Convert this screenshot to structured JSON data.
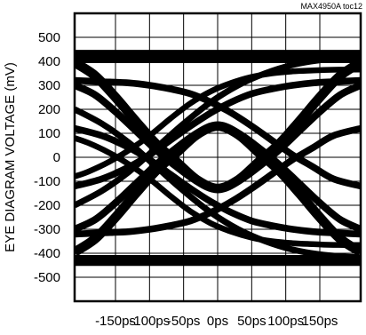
{
  "corner_label": "MAX4950A toc12",
  "chart_data": {
    "type": "line",
    "title": "",
    "xlabel": "",
    "ylabel": "EYE DIAGRAM VOLTAGE (mV)",
    "x_unit": "ps",
    "xlim": [
      -210,
      210
    ],
    "ylim": [
      -600,
      600
    ],
    "x_ticks": [
      -150,
      -100,
      -50,
      0,
      50,
      100,
      150
    ],
    "x_tick_labels": [
      "-150ps",
      "-100ps",
      "-50ps",
      "0ps",
      "50ps",
      "100ps",
      "150ps"
    ],
    "y_ticks": [
      500,
      400,
      300,
      200,
      100,
      0,
      -100,
      -200,
      -300,
      -400,
      -500
    ],
    "y_tick_labels": [
      "500",
      "400",
      "300",
      "200",
      "100",
      "0",
      "-100",
      "-200",
      "-300",
      "-400",
      "-500"
    ],
    "grid": true,
    "line_color": "#000000",
    "traces": [
      {
        "x": [
          -210,
          210
        ],
        "y": [
          420,
          420
        ],
        "width_mv": 55
      },
      {
        "x": [
          -210,
          210
        ],
        "y": [
          -430,
          -430
        ],
        "width_mv": 45
      },
      {
        "x": [
          -210,
          -180,
          -150,
          -120,
          -90,
          -60,
          -30,
          0,
          30,
          60,
          90,
          120,
          150,
          180,
          210
        ],
        "y": [
          395,
          340,
          250,
          150,
          55,
          -20,
          -95,
          -130,
          -95,
          -20,
          55,
          150,
          250,
          340,
          395
        ],
        "width_mv": 40
      },
      {
        "x": [
          -210,
          -180,
          -150,
          -120,
          -90,
          -60,
          -30,
          0,
          30,
          60,
          90,
          120,
          150,
          180,
          210
        ],
        "y": [
          -395,
          -340,
          -250,
          -150,
          -55,
          20,
          95,
          130,
          95,
          20,
          -55,
          -150,
          -250,
          -340,
          -395
        ],
        "width_mv": 40
      },
      {
        "x": [
          -210,
          -180,
          -150,
          -120,
          -90,
          -60,
          -30,
          0,
          30,
          60,
          90,
          120,
          150,
          180,
          210
        ],
        "y": [
          300,
          260,
          190,
          110,
          30,
          -40,
          -100,
          -130,
          -100,
          -40,
          30,
          110,
          190,
          260,
          300
        ],
        "width_mv": 30
      },
      {
        "x": [
          -210,
          -180,
          -150,
          -120,
          -90,
          -60,
          -30,
          0,
          30,
          60,
          90,
          120,
          150,
          180,
          210
        ],
        "y": [
          -300,
          -260,
          -190,
          -110,
          -30,
          40,
          100,
          130,
          100,
          40,
          -30,
          -110,
          -190,
          -260,
          -300
        ],
        "width_mv": 30
      },
      {
        "x": [
          -210,
          -170,
          -130,
          -100,
          -70,
          -40,
          -10,
          20,
          50,
          80,
          110,
          140,
          170,
          210
        ],
        "y": [
          120,
          90,
          40,
          -10,
          -70,
          -130,
          -185,
          -230,
          -265,
          -285,
          -300,
          -310,
          -315,
          -320
        ],
        "width_mv": 28
      },
      {
        "x": [
          -210,
          -170,
          -130,
          -100,
          -70,
          -40,
          -10,
          20,
          50,
          80,
          110,
          140,
          170,
          210
        ],
        "y": [
          -120,
          -90,
          -40,
          10,
          70,
          130,
          185,
          230,
          265,
          285,
          300,
          310,
          315,
          320
        ],
        "width_mv": 28
      },
      {
        "x": [
          -210,
          -170,
          -130,
          -100,
          -70,
          -40,
          -10,
          20,
          50,
          80,
          110,
          140,
          170,
          210
        ],
        "y": [
          320,
          315,
          310,
          300,
          285,
          265,
          230,
          185,
          130,
          70,
          10,
          -40,
          -90,
          -120
        ],
        "width_mv": 28
      },
      {
        "x": [
          -210,
          -170,
          -130,
          -100,
          -70,
          -40,
          -10,
          20,
          50,
          80,
          110,
          140,
          170,
          210
        ],
        "y": [
          -320,
          -315,
          -310,
          -300,
          -285,
          -265,
          -230,
          -185,
          -130,
          -70,
          -10,
          40,
          90,
          120
        ],
        "width_mv": 28
      },
      {
        "x": [
          -210,
          -170,
          -130,
          -90,
          -50,
          -10,
          30,
          70,
          110,
          150,
          190,
          210
        ],
        "y": [
          -200,
          -140,
          -60,
          40,
          140,
          230,
          300,
          350,
          385,
          405,
          415,
          418
        ],
        "width_mv": 26
      },
      {
        "x": [
          -210,
          -170,
          -130,
          -90,
          -50,
          -10,
          30,
          70,
          110,
          150,
          190,
          210
        ],
        "y": [
          200,
          140,
          60,
          -40,
          -140,
          -230,
          -300,
          -350,
          -385,
          -405,
          -415,
          -418
        ],
        "width_mv": 26
      },
      {
        "x": [
          -210,
          -190,
          -160,
          -130,
          -100,
          -70,
          -40,
          -10,
          20,
          50,
          80,
          110,
          140,
          170,
          210
        ],
        "y": [
          -80,
          -60,
          -20,
          30,
          90,
          160,
          225,
          275,
          310,
          335,
          350,
          358,
          362,
          365,
          366
        ],
        "width_mv": 24
      },
      {
        "x": [
          -210,
          -190,
          -160,
          -130,
          -100,
          -70,
          -40,
          -10,
          20,
          50,
          80,
          110,
          140,
          170,
          210
        ],
        "y": [
          80,
          60,
          20,
          -30,
          -90,
          -160,
          -225,
          -275,
          -310,
          -335,
          -350,
          -358,
          -362,
          -365,
          -366
        ],
        "width_mv": 24
      }
    ]
  }
}
